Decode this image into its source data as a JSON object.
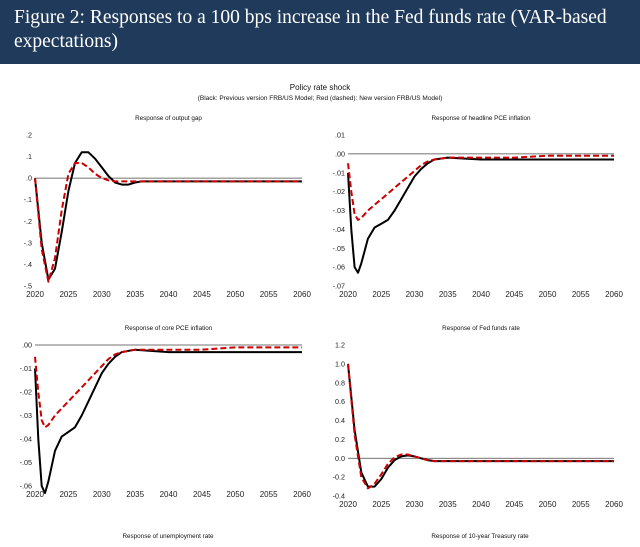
{
  "header": {
    "title": "Figure 2: Responses to a 100 bps increase in the Fed funds rate (VAR-based expectations)",
    "background": "#1f3a5a"
  },
  "figure": {
    "title": "Policy rate shock",
    "subtitle": "(Black: Previous version FRB/US Model; Red (dashed): New version FRB/US Model)"
  },
  "colors": {
    "previous": "#000000",
    "new": "#cc0000"
  },
  "chart_data": [
    {
      "type": "line",
      "title": "Response of output gap",
      "ylim": [
        -0.5,
        0.2
      ],
      "yticks": [
        0.2,
        0.1,
        0.0,
        -0.1,
        -0.2,
        -0.3,
        -0.4,
        -0.5
      ],
      "ytick_labels": [
        ".2",
        ".1",
        ".0",
        "-.1",
        "-.2",
        "-.3",
        "-.4",
        "-.5"
      ],
      "xlim": [
        2020,
        2060
      ],
      "xticks": [
        2020,
        2025,
        2030,
        2035,
        2040,
        2045,
        2050,
        2055,
        2060
      ],
      "series": [
        {
          "style": "solid",
          "color": "#000000",
          "x": [
            2020,
            2021,
            2022,
            2023,
            2024,
            2025,
            2026,
            2027,
            2028,
            2029,
            2030,
            2031,
            2032,
            2033,
            2034,
            2035,
            2036,
            2038,
            2040,
            2045,
            2050,
            2055,
            2060
          ],
          "y": [
            0,
            -0.3,
            -0.47,
            -0.42,
            -0.25,
            -0.06,
            0.07,
            0.12,
            0.12,
            0.09,
            0.05,
            0.01,
            -0.02,
            -0.03,
            -0.03,
            -0.02,
            -0.015,
            -0.015,
            -0.015,
            -0.015,
            -0.015,
            -0.015,
            -0.015
          ]
        },
        {
          "style": "dashed",
          "color": "#cc0000",
          "x": [
            2020,
            2021,
            2022,
            2023,
            2024,
            2025,
            2026,
            2027,
            2028,
            2029,
            2030,
            2031,
            2032,
            2033,
            2034,
            2036,
            2040,
            2045,
            2050,
            2055,
            2060
          ],
          "y": [
            0,
            -0.33,
            -0.48,
            -0.37,
            -0.15,
            0.02,
            0.07,
            0.07,
            0.05,
            0.02,
            0.0,
            -0.01,
            -0.015,
            -0.015,
            -0.015,
            -0.015,
            -0.015,
            -0.015,
            -0.015,
            -0.015,
            -0.015
          ]
        }
      ]
    },
    {
      "type": "line",
      "title": "Response of headline PCE inflation",
      "ylim": [
        -0.07,
        0.01
      ],
      "yticks": [
        0.01,
        0.0,
        -0.01,
        -0.02,
        -0.03,
        -0.04,
        -0.05,
        -0.06,
        -0.07
      ],
      "ytick_labels": [
        ".01",
        ".00",
        "-.01",
        "-.02",
        "-.03",
        "-.04",
        "-.05",
        "-.06",
        "-.07"
      ],
      "xlim": [
        2020,
        2060
      ],
      "xticks": [
        2020,
        2025,
        2030,
        2035,
        2040,
        2045,
        2050,
        2055,
        2060
      ],
      "series": [
        {
          "style": "solid",
          "color": "#000000",
          "x": [
            2020,
            2020.5,
            2021,
            2021.5,
            2022,
            2023,
            2024,
            2025,
            2026,
            2027,
            2028,
            2029,
            2030,
            2031,
            2032,
            2033,
            2035,
            2040,
            2045,
            2050,
            2055,
            2060
          ],
          "y": [
            -0.01,
            -0.04,
            -0.06,
            -0.063,
            -0.058,
            -0.045,
            -0.039,
            -0.037,
            -0.035,
            -0.03,
            -0.024,
            -0.018,
            -0.012,
            -0.008,
            -0.005,
            -0.003,
            -0.002,
            -0.003,
            -0.003,
            -0.003,
            -0.003,
            -0.003
          ]
        },
        {
          "style": "dashed",
          "color": "#cc0000",
          "x": [
            2020,
            2020.5,
            2021,
            2021.5,
            2022,
            2023,
            2024,
            2025,
            2026,
            2027,
            2028,
            2029,
            2030,
            2031,
            2032,
            2033,
            2035,
            2040,
            2045,
            2050,
            2055,
            2060
          ],
          "y": [
            -0.005,
            -0.02,
            -0.032,
            -0.035,
            -0.034,
            -0.03,
            -0.027,
            -0.024,
            -0.021,
            -0.018,
            -0.015,
            -0.012,
            -0.009,
            -0.006,
            -0.004,
            -0.003,
            -0.002,
            -0.002,
            -0.002,
            -0.001,
            -0.001,
            -0.001
          ]
        }
      ]
    },
    {
      "type": "line",
      "title": "Response of core PCE inflation",
      "ylim": [
        -0.06,
        0.0
      ],
      "yticks": [
        0.0,
        -0.01,
        -0.02,
        -0.03,
        -0.04,
        -0.05,
        -0.06
      ],
      "ytick_labels": [
        ".00",
        "-.01",
        "-.02",
        "-.03",
        "-.04",
        "-.05",
        "-.06"
      ],
      "xlim": [
        2020,
        2060
      ],
      "xticks": [
        2020,
        2025,
        2030,
        2035,
        2040,
        2045,
        2050,
        2055,
        2060
      ],
      "series": [
        {
          "style": "solid",
          "color": "#000000",
          "x": [
            2020,
            2020.5,
            2021,
            2021.5,
            2022,
            2023,
            2024,
            2025,
            2026,
            2027,
            2028,
            2029,
            2030,
            2031,
            2032,
            2033,
            2035,
            2040,
            2045,
            2050,
            2055,
            2060
          ],
          "y": [
            -0.01,
            -0.04,
            -0.06,
            -0.063,
            -0.058,
            -0.045,
            -0.039,
            -0.037,
            -0.035,
            -0.03,
            -0.024,
            -0.018,
            -0.012,
            -0.008,
            -0.005,
            -0.003,
            -0.002,
            -0.003,
            -0.003,
            -0.003,
            -0.003,
            -0.003
          ]
        },
        {
          "style": "dashed",
          "color": "#cc0000",
          "x": [
            2020,
            2020.5,
            2021,
            2021.5,
            2022,
            2023,
            2024,
            2025,
            2026,
            2027,
            2028,
            2029,
            2030,
            2031,
            2032,
            2033,
            2035,
            2040,
            2045,
            2050,
            2055,
            2060
          ],
          "y": [
            -0.005,
            -0.02,
            -0.032,
            -0.035,
            -0.034,
            -0.03,
            -0.027,
            -0.024,
            -0.021,
            -0.018,
            -0.015,
            -0.012,
            -0.009,
            -0.006,
            -0.004,
            -0.003,
            -0.002,
            -0.002,
            -0.002,
            -0.001,
            -0.001,
            -0.001
          ]
        }
      ]
    },
    {
      "type": "line",
      "title": "Response of Fed funds rate",
      "ylim": [
        -0.4,
        1.2
      ],
      "yticks": [
        1.2,
        1.0,
        0.8,
        0.6,
        0.4,
        0.2,
        0.0,
        -0.2,
        -0.4
      ],
      "ytick_labels": [
        "1.2",
        "1.0",
        "0.8",
        "0.6",
        "0.4",
        "0.2",
        "0.0",
        "-0.2",
        "-0.4"
      ],
      "xlim": [
        2020,
        2060
      ],
      "xticks": [
        2020,
        2025,
        2030,
        2035,
        2040,
        2045,
        2050,
        2055,
        2060
      ],
      "series": [
        {
          "style": "solid",
          "color": "#000000",
          "x": [
            2020,
            2021,
            2022,
            2023,
            2024,
            2025,
            2026,
            2027,
            2028,
            2029,
            2030,
            2031,
            2032,
            2033,
            2034,
            2036,
            2040,
            2045,
            2050,
            2055,
            2060
          ],
          "y": [
            1.0,
            0.3,
            -0.15,
            -0.3,
            -0.3,
            -0.22,
            -0.1,
            -0.02,
            0.02,
            0.03,
            0.02,
            0.0,
            -0.02,
            -0.03,
            -0.03,
            -0.03,
            -0.03,
            -0.03,
            -0.03,
            -0.03,
            -0.03
          ]
        },
        {
          "style": "dashed",
          "color": "#cc0000",
          "x": [
            2020,
            2021,
            2022,
            2023,
            2024,
            2025,
            2026,
            2027,
            2028,
            2029,
            2030,
            2031,
            2032,
            2033,
            2034,
            2036,
            2040,
            2045,
            2050,
            2055,
            2060
          ],
          "y": [
            1.0,
            0.25,
            -0.2,
            -0.32,
            -0.27,
            -0.17,
            -0.06,
            0.01,
            0.04,
            0.04,
            0.02,
            0.0,
            -0.02,
            -0.03,
            -0.03,
            -0.03,
            -0.03,
            -0.03,
            -0.03,
            -0.03,
            -0.03
          ]
        }
      ]
    }
  ],
  "next_panels": [
    "Response of unemployment rate",
    "Response of 10-year Treasury rate"
  ]
}
